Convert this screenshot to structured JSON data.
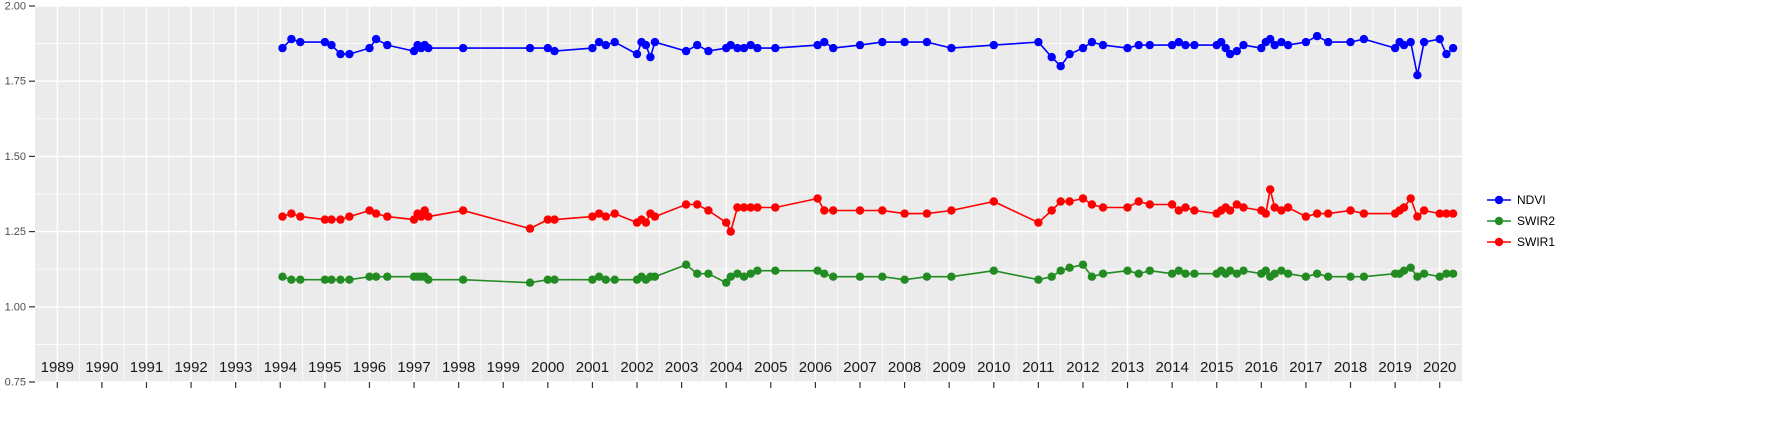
{
  "chart_data": {
    "type": "line",
    "title": "",
    "xlabel": "",
    "ylabel": "",
    "xlim": [
      1988.5,
      2020.5
    ],
    "ylim": [
      0.75,
      2.0
    ],
    "x_ticks": [
      1989,
      1990,
      1991,
      1992,
      1993,
      1994,
      1995,
      1996,
      1997,
      1998,
      1999,
      2000,
      2001,
      2002,
      2003,
      2004,
      2005,
      2006,
      2007,
      2008,
      2009,
      2010,
      2011,
      2012,
      2013,
      2014,
      2015,
      2016,
      2017,
      2018,
      2019,
      2020
    ],
    "y_ticks": [
      0.75,
      1.0,
      1.25,
      1.5,
      1.75,
      2.0
    ],
    "y_tick_labels": [
      "0.75",
      "1.00",
      "1.25",
      "1.50",
      "1.75",
      "2.00"
    ],
    "grid": "white major and minor gridlines on gray panel",
    "legend_position": "right",
    "x": [
      1994.05,
      1994.25,
      1994.45,
      1995.0,
      1995.15,
      1995.35,
      1995.55,
      1996.0,
      1996.15,
      1996.4,
      1997.0,
      1997.08,
      1997.16,
      1997.24,
      1997.32,
      1998.1,
      1999.6,
      2000.0,
      2000.15,
      2001.0,
      2001.15,
      2001.3,
      2001.5,
      2002.0,
      2002.1,
      2002.2,
      2002.3,
      2002.4,
      2003.1,
      2003.35,
      2003.6,
      2004.0,
      2004.1,
      2004.25,
      2004.4,
      2004.55,
      2004.7,
      2005.1,
      2006.05,
      2006.2,
      2006.4,
      2007.0,
      2007.5,
      2008.0,
      2008.5,
      2009.05,
      2010.0,
      2011.0,
      2011.3,
      2011.5,
      2011.7,
      2012.0,
      2012.2,
      2012.45,
      2013.0,
      2013.25,
      2013.5,
      2014.0,
      2014.15,
      2014.3,
      2014.5,
      2015.0,
      2015.1,
      2015.2,
      2015.3,
      2015.45,
      2015.6,
      2016.0,
      2016.1,
      2016.2,
      2016.3,
      2016.45,
      2016.6,
      2017.0,
      2017.25,
      2017.5,
      2018.0,
      2018.3,
      2019.0,
      2019.1,
      2019.2,
      2019.35,
      2019.5,
      2019.65,
      2020.0,
      2020.15,
      2020.3
    ],
    "series": [
      {
        "name": "NDVI",
        "color": "#0000FF",
        "values": [
          1.86,
          1.89,
          1.88,
          1.88,
          1.87,
          1.84,
          1.84,
          1.86,
          1.89,
          1.87,
          1.85,
          1.87,
          1.86,
          1.87,
          1.86,
          1.86,
          1.86,
          1.86,
          1.85,
          1.86,
          1.88,
          1.87,
          1.88,
          1.84,
          1.88,
          1.87,
          1.83,
          1.88,
          1.85,
          1.87,
          1.85,
          1.86,
          1.87,
          1.86,
          1.86,
          1.87,
          1.86,
          1.86,
          1.87,
          1.88,
          1.86,
          1.87,
          1.88,
          1.88,
          1.88,
          1.86,
          1.87,
          1.88,
          1.83,
          1.8,
          1.84,
          1.86,
          1.88,
          1.87,
          1.86,
          1.87,
          1.87,
          1.87,
          1.88,
          1.87,
          1.87,
          1.87,
          1.88,
          1.86,
          1.84,
          1.85,
          1.87,
          1.86,
          1.88,
          1.89,
          1.87,
          1.88,
          1.87,
          1.88,
          1.9,
          1.88,
          1.88,
          1.89,
          1.86,
          1.88,
          1.87,
          1.88,
          1.77,
          1.88,
          1.89,
          1.84,
          1.86
        ]
      },
      {
        "name": "SWIR2",
        "color": "#228B22",
        "values": [
          1.1,
          1.09,
          1.09,
          1.09,
          1.09,
          1.09,
          1.09,
          1.1,
          1.1,
          1.1,
          1.1,
          1.1,
          1.1,
          1.1,
          1.09,
          1.09,
          1.08,
          1.09,
          1.09,
          1.09,
          1.1,
          1.09,
          1.09,
          1.09,
          1.1,
          1.09,
          1.1,
          1.1,
          1.14,
          1.11,
          1.11,
          1.08,
          1.1,
          1.11,
          1.1,
          1.11,
          1.12,
          1.12,
          1.12,
          1.11,
          1.1,
          1.1,
          1.1,
          1.09,
          1.1,
          1.1,
          1.12,
          1.09,
          1.1,
          1.12,
          1.13,
          1.14,
          1.1,
          1.11,
          1.12,
          1.11,
          1.12,
          1.11,
          1.12,
          1.11,
          1.11,
          1.11,
          1.12,
          1.11,
          1.12,
          1.11,
          1.12,
          1.11,
          1.12,
          1.1,
          1.11,
          1.12,
          1.11,
          1.1,
          1.11,
          1.1,
          1.1,
          1.1,
          1.11,
          1.11,
          1.12,
          1.13,
          1.1,
          1.11,
          1.1,
          1.11,
          1.11
        ]
      },
      {
        "name": "SWIR1",
        "color": "#FF0000",
        "values": [
          1.3,
          1.31,
          1.3,
          1.29,
          1.29,
          1.29,
          1.3,
          1.32,
          1.31,
          1.3,
          1.29,
          1.31,
          1.3,
          1.32,
          1.3,
          1.32,
          1.26,
          1.29,
          1.29,
          1.3,
          1.31,
          1.3,
          1.31,
          1.28,
          1.29,
          1.28,
          1.31,
          1.3,
          1.34,
          1.34,
          1.32,
          1.28,
          1.25,
          1.33,
          1.33,
          1.33,
          1.33,
          1.33,
          1.36,
          1.32,
          1.32,
          1.32,
          1.32,
          1.31,
          1.31,
          1.32,
          1.35,
          1.28,
          1.32,
          1.35,
          1.35,
          1.36,
          1.34,
          1.33,
          1.33,
          1.35,
          1.34,
          1.34,
          1.32,
          1.33,
          1.32,
          1.31,
          1.32,
          1.33,
          1.32,
          1.34,
          1.33,
          1.32,
          1.31,
          1.39,
          1.33,
          1.32,
          1.33,
          1.3,
          1.31,
          1.31,
          1.32,
          1.31,
          1.31,
          1.32,
          1.33,
          1.36,
          1.3,
          1.32,
          1.31,
          1.31,
          1.31
        ]
      }
    ],
    "legend": [
      "NDVI",
      "SWIR2",
      "SWIR1"
    ]
  },
  "colors": {
    "panel_bg": "#EBEBEB",
    "grid_major": "#FFFFFF",
    "grid_minor": "#FFFFFF",
    "tick": "#333333",
    "x_label": "#1a1a1a",
    "y_label": "#4d4d4d",
    "page_bg": "#FFFFFF"
  }
}
